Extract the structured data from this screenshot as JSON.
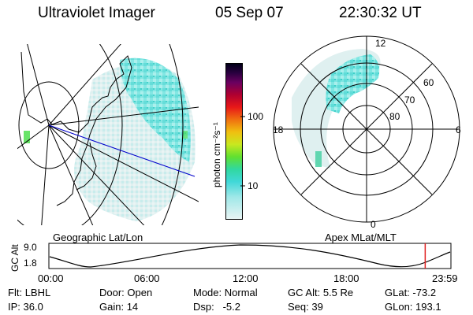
{
  "header": {
    "title": "Ultraviolet Imager",
    "date": "05 Sep 07",
    "time": "22:30:32 UT"
  },
  "map": {
    "label": "Geographic Lat/Lon"
  },
  "colorbar": {
    "unit_label": "photon cm⁻²s⁻¹",
    "ticks": [
      "100",
      "10"
    ]
  },
  "polar": {
    "label": "Apex MLat/MLT",
    "mlt_labels": {
      "top": "12",
      "left": "18",
      "right": "6",
      "bottom": "0"
    },
    "lat_labels": [
      "60",
      "70",
      "80"
    ]
  },
  "altitude_plot": {
    "ylabel": "GC Alt",
    "yticks": [
      "9.0",
      "1.8"
    ],
    "xticks": [
      "00:00",
      "06:00",
      "12:00",
      "18:00",
      "23:59"
    ],
    "current_marker_fraction": 0.936
  },
  "info": {
    "flt_label": "Flt:",
    "flt_value": "LBHL",
    "ip_label": "IP:",
    "ip_value": "36.0",
    "door_label": "Door:",
    "door_value": "Open",
    "gain_label": "Gain:",
    "gain_value": "14",
    "mode_label": "Mode:",
    "mode_value": "Normal",
    "dsp_label": "Dsp:",
    "dsp_value": "-5.2",
    "gcalt_label": "GC Alt:",
    "gcalt_value": "5.5 Re",
    "seq_label": "Seq:",
    "seq_value": "39",
    "glat_label": "GLat:",
    "glat_value": "-73.2",
    "glon_label": "GLon:",
    "glon_value": "193.1"
  },
  "colors": {
    "aurora_main": "#5fe0dc",
    "aurora_bright": "#2ec8c8",
    "aurora_faint": "#d8eeee",
    "green_spot": "#44dd44",
    "marker": "#e02020",
    "trackline": "#0000cc"
  }
}
